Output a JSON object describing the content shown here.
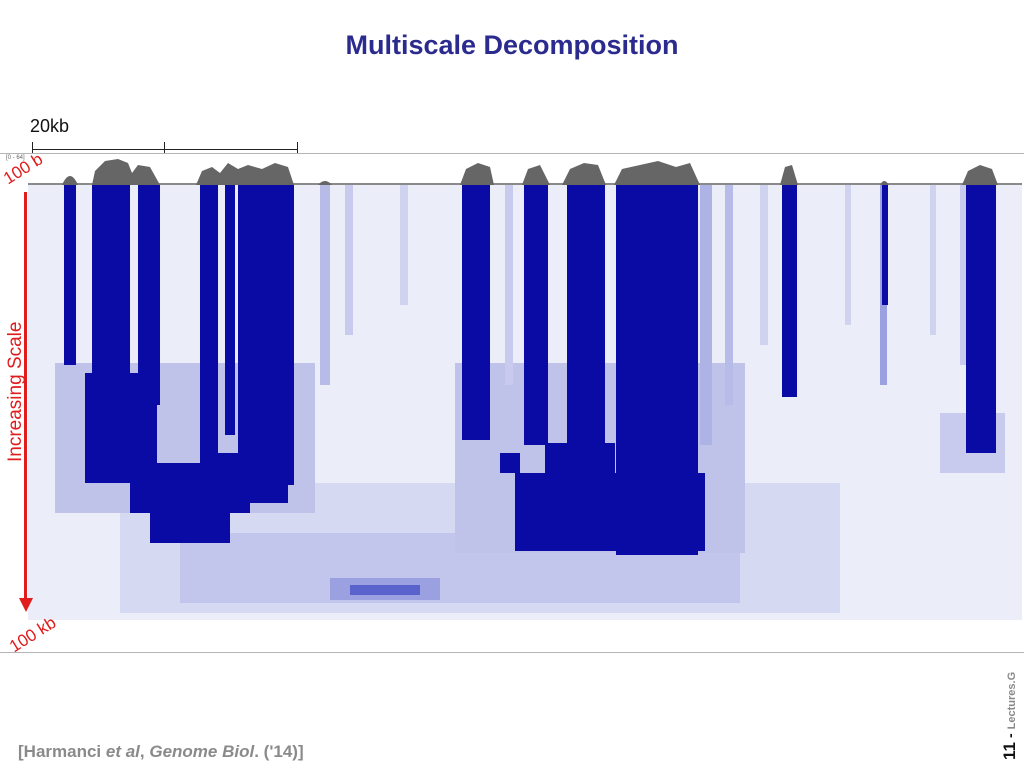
{
  "title": "Multiscale Decomposition",
  "scale_bar": {
    "label": "20kb"
  },
  "track": {
    "range_label": "[0 - 64]"
  },
  "annotations": {
    "top_scale": "100 b",
    "bottom_scale": "100 kb",
    "axis_label": "Increasing Scale"
  },
  "citation": {
    "open": "[Harmanci ",
    "etal": "et al",
    "sep": ", ",
    "journal": "Genome Biol",
    "close": ". ('14)]"
  },
  "footer": {
    "page_number": "11",
    "dash": "-",
    "site": "Lectures.G"
  },
  "colors": {
    "dark_blue": "#0a0aa5",
    "title": "#2b2b8f",
    "arrow": "#e01c1c",
    "signal": "#666666"
  }
}
